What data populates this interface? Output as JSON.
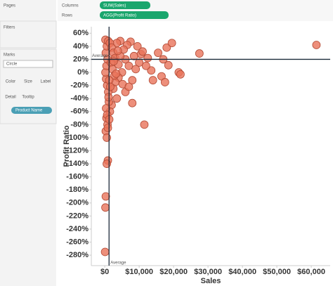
{
  "ui": {
    "pages": "Pages",
    "filters": "Filters",
    "marks": "Marks",
    "mark_type": "Circle",
    "mark_buttons": [
      "Color",
      "Size",
      "Label",
      "Detail",
      "Tooltip"
    ],
    "mark_pill": "Product Name",
    "columns_label": "Columns",
    "columns_pill": "SUM(Sales)",
    "rows_label": "Rows",
    "rows_pill": "AGG(Profit Ratio)"
  },
  "chart_data": {
    "type": "scatter",
    "x_label": "Sales",
    "y_label": "Profit Ratio",
    "color": "#e8735a",
    "grid": false,
    "xlim": [
      -3900,
      65500
    ],
    "ylim": [
      -296,
      70
    ],
    "xticks": [
      {
        "value": 0,
        "label": "$0"
      },
      {
        "value": 10000,
        "label": "$10,000"
      },
      {
        "value": 20000,
        "label": "$20,000"
      },
      {
        "value": 30000,
        "label": "$30,000"
      },
      {
        "value": 40000,
        "label": "$40,000"
      },
      {
        "value": 50000,
        "label": "$50,000"
      },
      {
        "value": 60000,
        "label": "$60,000"
      }
    ],
    "yticks": [
      {
        "value": 60,
        "label": "60%"
      },
      {
        "value": 40,
        "label": "40%"
      },
      {
        "value": 20,
        "label": "20%"
      },
      {
        "value": 0,
        "label": "0%"
      },
      {
        "value": -20,
        "label": "-20%"
      },
      {
        "value": -40,
        "label": "-40%"
      },
      {
        "value": -60,
        "label": "-60%"
      },
      {
        "value": -80,
        "label": "-80%"
      },
      {
        "value": -100,
        "label": "-100%"
      },
      {
        "value": -120,
        "label": "-120%"
      },
      {
        "value": -140,
        "label": "-140%"
      },
      {
        "value": -160,
        "label": "-160%"
      },
      {
        "value": -180,
        "label": "-180%"
      },
      {
        "value": -200,
        "label": "-200%"
      },
      {
        "value": -220,
        "label": "-220%"
      },
      {
        "value": -240,
        "label": "-240%"
      },
      {
        "value": -260,
        "label": "-260%"
      },
      {
        "value": -280,
        "label": "-280%"
      }
    ],
    "reference_lines": [
      {
        "axis": "x",
        "value": 1250,
        "label": "Average"
      },
      {
        "axis": "y",
        "value": 20,
        "label": "Average"
      }
    ],
    "x": [
      61500,
      27500,
      18000,
      19500,
      17000,
      18500,
      21500,
      16500,
      14000,
      17500,
      11500,
      8000,
      22000,
      13500,
      12000,
      10000,
      9500,
      10500,
      7500,
      6500,
      4500,
      3500,
      5500,
      8500,
      6000,
      7000,
      9000,
      5000,
      4000,
      3000,
      2500,
      6000,
      3500,
      2000,
      1500,
      500,
      800,
      300,
      600,
      900,
      1200,
      1000,
      700,
      400,
      200,
      500,
      800,
      300,
      600,
      200,
      1000,
      1500,
      2000,
      2500,
      3000,
      1800,
      2200,
      2800,
      1300,
      4000,
      4500,
      5200,
      1100,
      400,
      700,
      1300,
      900,
      600,
      300,
      200,
      100,
      1600,
      3300,
      2600,
      3800,
      8000,
      7000,
      11000,
      12500,
      15500
    ],
    "values": [
      42,
      29,
      38,
      45,
      20,
      11,
      0,
      -6,
      -12,
      -15,
      -80,
      -47,
      -3,
      3,
      10,
      15,
      40,
      28,
      47,
      42,
      48,
      45,
      35,
      25,
      20,
      10,
      5,
      0,
      -8,
      -15,
      -25,
      -30,
      -40,
      -50,
      -60,
      -70,
      -80,
      -90,
      -100,
      -85,
      -45,
      -30,
      -20,
      -10,
      0,
      10,
      20,
      30,
      40,
      50,
      48,
      45,
      38,
      30,
      22,
      15,
      5,
      -5,
      -12,
      12,
      25,
      -18,
      -38,
      -55,
      -65,
      -72,
      -135,
      -140,
      -190,
      -207,
      -275,
      -22,
      -2,
      17,
      33,
      -12,
      -22,
      32,
      22,
      30
    ]
  }
}
